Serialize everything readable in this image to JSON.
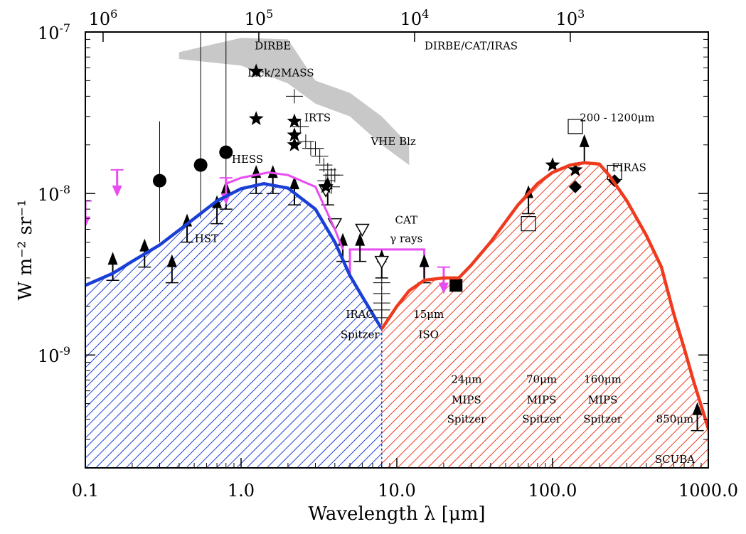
{
  "chart_data": {
    "type": "line",
    "xlabel": "Wavelength λ [μm]",
    "ylabel": "W m⁻² sr⁻¹",
    "xscale": "log",
    "yscale": "log",
    "xlim": [
      0.1,
      1000
    ],
    "ylim": [
      2e-10,
      1e-07
    ],
    "x_ticks": [
      {
        "value": 0.1,
        "label": "0.1"
      },
      {
        "value": 1,
        "label": "1.0"
      },
      {
        "value": 10,
        "label": "10.0"
      },
      {
        "value": 100,
        "label": "100.0"
      },
      {
        "value": 1000,
        "label": "1000.0"
      }
    ],
    "y_ticks": [
      {
        "value": 1e-09,
        "label": "10",
        "exp": "-9"
      },
      {
        "value": 1e-08,
        "label": "10",
        "exp": "-8"
      },
      {
        "value": 1e-07,
        "label": "10",
        "exp": "-7"
      }
    ],
    "top_ticks": [
      {
        "label": "10",
        "exp": "6",
        "value": 0.13
      },
      {
        "label": "10",
        "exp": "5",
        "value": 1.3
      },
      {
        "label": "10",
        "exp": "4",
        "value": 13
      },
      {
        "label": "10",
        "exp": "3",
        "value": 130
      }
    ],
    "series": [
      {
        "color": "#1a3fd6",
        "x": [
          0.1,
          0.15,
          0.2,
          0.3,
          0.5,
          0.7,
          1.0,
          1.4,
          2.0,
          3.0,
          4.0,
          5.0,
          6.0,
          8.0
        ],
        "y": [
          2.7e-09,
          3.2e-09,
          3.8e-09,
          4.8e-09,
          7e-09,
          9e-09,
          1.07e-08,
          1.15e-08,
          1.08e-08,
          8e-09,
          5e-09,
          3.1e-09,
          2.3e-09,
          1.45e-09
        ]
      },
      {
        "color": "#f03a1e",
        "x": [
          8.0,
          10.0,
          12.0,
          15.0,
          20.0,
          25.0,
          30.0,
          40.0,
          60.0,
          80.0,
          100.0,
          130.0,
          160.0,
          200.0,
          230.0,
          260.0,
          300.0,
          400.0,
          500.0,
          600.0,
          700.0,
          800.0,
          1000.0
        ],
        "y": [
          1.45e-09,
          2e-09,
          2.5e-09,
          2.9e-09,
          3e-09,
          3e-09,
          3.6e-09,
          5e-09,
          8.5e-09,
          1.15e-08,
          1.35e-08,
          1.5e-08,
          1.55e-08,
          1.52e-08,
          1.3e-08,
          1.1e-08,
          9e-09,
          5.5e-09,
          3.5e-09,
          1.8e-09,
          1.1e-09,
          7e-10,
          3.5e-10
        ]
      },
      {
        "color": "#e84cf2",
        "x": [
          0.8,
          1.0,
          1.5,
          2.0,
          3.0,
          4.0,
          4.5
        ],
        "y": [
          1.15e-08,
          1.25e-08,
          1.35e-08,
          1.3e-08,
          1.1e-08,
          6e-09,
          4.5e-09
        ]
      }
    ],
    "cat_box": {
      "x": [
        5,
        15
      ],
      "y": [
        3e-09,
        4.5e-09
      ]
    },
    "grey_band": {
      "upper": [
        [
          0.4,
          7.5e-08
        ],
        [
          1.0,
          9.2e-08
        ],
        [
          2.0,
          9e-08
        ],
        [
          3.0,
          5e-08
        ],
        [
          5.0,
          4.2e-08
        ],
        [
          8.0,
          3e-08
        ],
        [
          12.0,
          2e-08
        ]
      ],
      "lower": [
        [
          12.0,
          1.5e-08
        ],
        [
          8.0,
          2e-08
        ],
        [
          5.0,
          3e-08
        ],
        [
          3.0,
          3.6e-08
        ],
        [
          2.0,
          4.8e-08
        ],
        [
          1.0,
          6.2e-08
        ],
        [
          0.4,
          6.8e-08
        ]
      ]
    },
    "circles": [
      [
        0.3,
        1.2e-08,
        2.8e-08,
        5e-09
      ],
      [
        0.55,
        1.5e-08,
        2.5e-07,
        7e-09
      ],
      [
        0.8,
        1.8e-08,
        2.5e-07,
        9e-09
      ]
    ],
    "stars": [
      [
        1.25,
        5.7e-08
      ],
      [
        1.25,
        2.9e-08
      ],
      [
        2.2,
        2.8e-08
      ],
      [
        2.2,
        2.3e-08
      ],
      [
        2.2,
        2e-08
      ],
      [
        3.5,
        1.1e-08
      ],
      [
        100,
        1.5e-08
      ],
      [
        140,
        1.4e-08
      ]
    ],
    "crosses": [
      [
        2.2,
        4e-08
      ],
      [
        2.4,
        2.6e-08
      ],
      [
        2.6,
        2.1e-08
      ],
      [
        2.8,
        1.9e-08
      ],
      [
        3.0,
        1.9e-08
      ],
      [
        3.2,
        1.7e-08
      ],
      [
        3.4,
        1.5e-08
      ],
      [
        3.6,
        1.4e-08
      ],
      [
        3.8,
        1.3e-08
      ],
      [
        4.0,
        1.3e-08
      ],
      [
        3.5,
        1.2e-08
      ],
      [
        3.8,
        1.1e-08
      ],
      [
        8.0,
        2.8e-09
      ],
      [
        8.0,
        2.4e-09
      ],
      [
        8.0,
        2.1e-09
      ],
      [
        8.0,
        1.9e-09
      ],
      [
        8.0,
        1.7e-09
      ]
    ],
    "lower_limits": [
      [
        0.15,
        2.9e-09
      ],
      [
        0.24,
        3.5e-09
      ],
      [
        0.36,
        2.8e-09
      ],
      [
        0.45,
        5e-09
      ],
      [
        0.7,
        6.5e-09
      ],
      [
        0.8,
        8e-09
      ],
      [
        1.25,
        1e-08
      ],
      [
        1.6,
        1e-08
      ],
      [
        2.2,
        8.5e-09
      ],
      [
        3.6,
        8.5e-09
      ],
      [
        4.5,
        3.8e-09
      ],
      [
        5.8,
        3.8e-09
      ],
      [
        8.0,
        3e-09
      ],
      [
        15.0,
        2.8e-09
      ],
      [
        70.0,
        7.5e-09
      ],
      [
        160.0,
        1.55e-08
      ],
      [
        850.0,
        3.4e-10
      ]
    ],
    "magenta_arrows": [
      [
        0.1,
        9e-09
      ],
      [
        0.16,
        1.4e-08
      ],
      [
        0.8,
        1.25e-08
      ],
      [
        20.0,
        3.5e-09
      ]
    ],
    "open_triangles": [
      [
        4.0,
        6.5e-09
      ],
      [
        6.0,
        6e-09
      ],
      [
        8.0,
        3.8e-09
      ],
      [
        3.5,
        1.05e-08
      ]
    ],
    "open_squares": [
      [
        70,
        6.5e-09
      ],
      [
        140,
        2.6e-08
      ],
      [
        250,
        1.35e-08
      ]
    ],
    "filled_squares": [
      [
        24,
        2.7e-09
      ]
    ],
    "diamonds": [
      [
        140,
        1.1e-08
      ],
      [
        250,
        1.2e-08
      ]
    ],
    "annotations": [
      {
        "text": "DIRBE",
        "x": 1.6,
        "y": 7.8e-08
      },
      {
        "text": "DIRBE/CAT/IRAS",
        "x": 30,
        "y": 7.8e-08
      },
      {
        "text": "Lick/2MASS",
        "x": 1.8,
        "y": 5.3e-08
      },
      {
        "text": "IRTS",
        "x": 3.1,
        "y": 2.8e-08
      },
      {
        "text": "200 - 1200μm",
        "x": 260,
        "y": 2.8e-08
      },
      {
        "text": "VHE Blz",
        "x": 9.5,
        "y": 2e-08
      },
      {
        "text": "HESS",
        "x": 1.1,
        "y": 1.55e-08
      },
      {
        "text": "FIRAS",
        "x": 310,
        "y": 1.38e-08
      },
      {
        "text": "CAT",
        "x": 11.5,
        "y": 6.5e-09
      },
      {
        "text": "HST",
        "x": 0.6,
        "y": 5e-09
      },
      {
        "text": "γ rays",
        "x": 11.5,
        "y": 5e-09
      },
      {
        "text": "IRAC",
        "x": 5.8,
        "y": 1.7e-09
      },
      {
        "text": "15μm",
        "x": 16,
        "y": 1.7e-09
      },
      {
        "text": "Spitzer",
        "x": 5.8,
        "y": 1.27e-09
      },
      {
        "text": "ISO",
        "x": 16,
        "y": 1.27e-09
      },
      {
        "text": "24μm",
        "x": 28,
        "y": 6.7e-10
      },
      {
        "text": "70μm",
        "x": 85,
        "y": 6.7e-10
      },
      {
        "text": "160μm",
        "x": 210,
        "y": 6.7e-10
      },
      {
        "text": "MIPS",
        "x": 28,
        "y": 5e-10
      },
      {
        "text": "MIPS",
        "x": 85,
        "y": 5e-10
      },
      {
        "text": "MIPS",
        "x": 210,
        "y": 5e-10
      },
      {
        "text": "Spitzer",
        "x": 28,
        "y": 3.8e-10
      },
      {
        "text": "Spitzer",
        "x": 85,
        "y": 3.8e-10
      },
      {
        "text": "Spitzer",
        "x": 210,
        "y": 3.8e-10
      },
      {
        "text": "850μm",
        "x": 610,
        "y": 3.8e-10
      },
      {
        "text": "SCUBA",
        "x": 610,
        "y": 2.15e-10
      }
    ]
  }
}
